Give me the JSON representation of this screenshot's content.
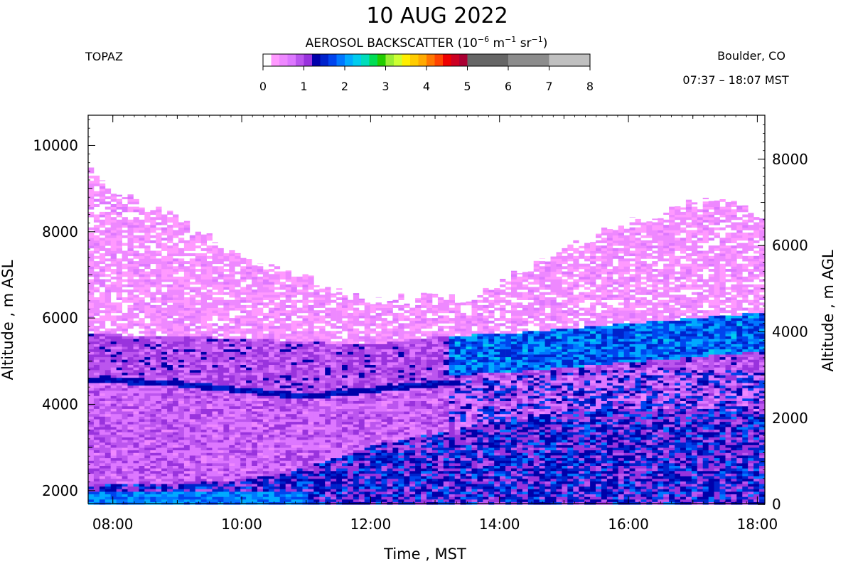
{
  "header": {
    "title": "10 AUG 2022",
    "instrument": "TOPAZ",
    "location": "Boulder, CO",
    "time_range": "07:37 – 18:07 MST"
  },
  "colorbar": {
    "label_main": "AEROSOL BACKSCATTER (10",
    "label_exp1": "−6",
    "label_mid": " m",
    "label_exp2": "−1",
    "label_mid2": " sr",
    "label_exp3": "−1",
    "label_end": ")",
    "ticks": [
      "0",
      "1",
      "2",
      "3",
      "4",
      "5",
      "6",
      "7",
      "8"
    ],
    "range": [
      0,
      8
    ],
    "bins": [
      {
        "from": 0.0,
        "to": 0.2,
        "color": "#ffffff"
      },
      {
        "from": 0.2,
        "to": 0.4,
        "color": "#ff99ff"
      },
      {
        "from": 0.4,
        "to": 0.6,
        "color": "#ee88ff"
      },
      {
        "from": 0.6,
        "to": 0.8,
        "color": "#dd77ff"
      },
      {
        "from": 0.8,
        "to": 1.0,
        "color": "#bb55ee"
      },
      {
        "from": 1.0,
        "to": 1.2,
        "color": "#9933dd"
      },
      {
        "from": 1.2,
        "to": 1.4,
        "color": "#0000aa"
      },
      {
        "from": 1.4,
        "to": 1.6,
        "color": "#0022cc"
      },
      {
        "from": 1.6,
        "to": 1.8,
        "color": "#0044ee"
      },
      {
        "from": 1.8,
        "to": 2.0,
        "color": "#0077ff"
      },
      {
        "from": 2.0,
        "to": 2.2,
        "color": "#00aaff"
      },
      {
        "from": 2.2,
        "to": 2.4,
        "color": "#00ccee"
      },
      {
        "from": 2.4,
        "to": 2.6,
        "color": "#00ddbb"
      },
      {
        "from": 2.6,
        "to": 2.8,
        "color": "#00dd55"
      },
      {
        "from": 2.8,
        "to": 3.0,
        "color": "#22cc00"
      },
      {
        "from": 3.0,
        "to": 3.2,
        "color": "#99ee33"
      },
      {
        "from": 3.2,
        "to": 3.4,
        "color": "#ccff33"
      },
      {
        "from": 3.4,
        "to": 3.6,
        "color": "#ffee00"
      },
      {
        "from": 3.6,
        "to": 3.8,
        "color": "#ffcc00"
      },
      {
        "from": 3.8,
        "to": 4.0,
        "color": "#ffaa00"
      },
      {
        "from": 4.0,
        "to": 4.2,
        "color": "#ff7700"
      },
      {
        "from": 4.2,
        "to": 4.4,
        "color": "#ff4400"
      },
      {
        "from": 4.4,
        "to": 4.6,
        "color": "#ee0000"
      },
      {
        "from": 4.6,
        "to": 4.8,
        "color": "#cc0022"
      },
      {
        "from": 4.8,
        "to": 5.0,
        "color": "#aa0033"
      },
      {
        "from": 5.0,
        "to": 6.0,
        "color": "#666666"
      },
      {
        "from": 6.0,
        "to": 7.0,
        "color": "#8c8c8c"
      },
      {
        "from": 7.0,
        "to": 8.0,
        "color": "#c0c0c0"
      }
    ]
  },
  "chart_data": {
    "type": "heatmap",
    "title": "10 AUG 2022",
    "xlabel": "Time , MST",
    "ylabel_left": "Altitude , m ASL",
    "ylabel_right": "Altitude , m AGL",
    "x_range_hours": [
      7.617,
      18.117
    ],
    "x_ticks": [
      "08:00",
      "10:00",
      "12:00",
      "14:00",
      "16:00",
      "18:00"
    ],
    "y_left_range": [
      1700,
      10700
    ],
    "y_left_ticks": [
      2000,
      4000,
      6000,
      8000,
      10000
    ],
    "y_right_ticks": [
      0,
      2000,
      4000,
      6000,
      8000
    ],
    "ground_altitude_m": 1680,
    "value_units": "10^-6 m^-1 sr^-1",
    "profile_top_altitude_m": [
      {
        "time": "07:40",
        "alt": 9450
      },
      {
        "time": "08:00",
        "alt": 9000
      },
      {
        "time": "09:00",
        "alt": 8300
      },
      {
        "time": "10:00",
        "alt": 7400
      },
      {
        "time": "11:00",
        "alt": 6900
      },
      {
        "time": "12:00",
        "alt": 6400
      },
      {
        "time": "13:00",
        "alt": 6500
      },
      {
        "time": "13:30",
        "alt": 6400
      },
      {
        "time": "14:00",
        "alt": 6800
      },
      {
        "time": "15:00",
        "alt": 7600
      },
      {
        "time": "16:00",
        "alt": 8200
      },
      {
        "time": "17:00",
        "alt": 8650
      },
      {
        "time": "17:30",
        "alt": 8750
      },
      {
        "time": "18:07",
        "alt": 8300
      }
    ],
    "residual_layer_top_altitude_m": [
      {
        "time": "07:40",
        "alt": 5600
      },
      {
        "time": "10:00",
        "alt": 5500
      },
      {
        "time": "12:00",
        "alt": 5350
      },
      {
        "time": "13:00",
        "alt": 5550
      },
      {
        "time": "14:00",
        "alt": 5600
      },
      {
        "time": "16:00",
        "alt": 5850
      },
      {
        "time": "18:07",
        "alt": 6100
      }
    ],
    "aerosol_layer_base_altitude_m": [
      {
        "time": "07:40",
        "alt": 4550
      },
      {
        "time": "09:00",
        "alt": 4450
      },
      {
        "time": "10:00",
        "alt": 4300
      },
      {
        "time": "11:00",
        "alt": 4150
      },
      {
        "time": "12:00",
        "alt": 4300
      },
      {
        "time": "14:00",
        "alt": 4600
      },
      {
        "time": "16:00",
        "alt": 4750
      },
      {
        "time": "18:07",
        "alt": 4800
      }
    ],
    "boundary_layer_top_altitude_m": [
      {
        "time": "07:40",
        "alt": 2100
      },
      {
        "time": "10:00",
        "alt": 2200
      },
      {
        "time": "11:00",
        "alt": 2500
      },
      {
        "time": "12:00",
        "alt": 3000
      },
      {
        "time": "13:00",
        "alt": 3300
      },
      {
        "time": "14:00",
        "alt": 3600
      },
      {
        "time": "16:00",
        "alt": 3900
      },
      {
        "time": "18:07",
        "alt": 3800
      }
    ]
  }
}
